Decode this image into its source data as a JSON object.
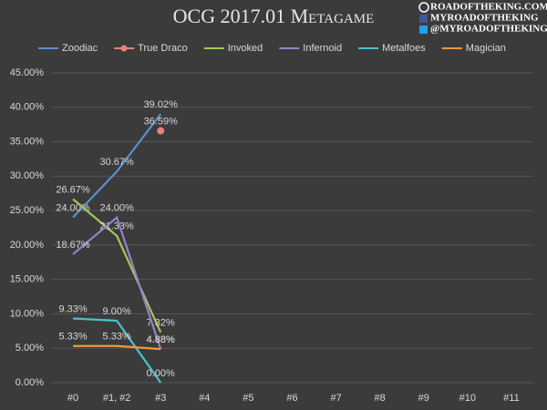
{
  "chart_data": {
    "type": "line",
    "title": "OCG 2017.01 Metagame",
    "branding": [
      "ROADOFTHEKING.COM",
      "MYROADOFTHEKING",
      "@MYROADOFTHEKING"
    ],
    "categories": [
      "#0",
      "#1, #2",
      "#3",
      "#4",
      "#5",
      "#6",
      "#7",
      "#8",
      "#9",
      "#10",
      "#11"
    ],
    "series": [
      {
        "name": "Zoodiac",
        "color": "#5b8fd0",
        "values": [
          24,
          30.67,
          39.02,
          null,
          null,
          null,
          null,
          null,
          null,
          null,
          null
        ],
        "value_labels": [
          "24.00%",
          "30.67%",
          "39.02%",
          null,
          null,
          null,
          null,
          null,
          null,
          null,
          null
        ]
      },
      {
        "name": "True Draco",
        "color": "#e8837a",
        "marker": true,
        "values": [
          null,
          null,
          36.59,
          null,
          null,
          null,
          null,
          null,
          null,
          null,
          null
        ],
        "value_labels": [
          null,
          null,
          "36.59%",
          null,
          null,
          null,
          null,
          null,
          null,
          null,
          null
        ]
      },
      {
        "name": "Invoked",
        "color": "#a4c85a",
        "values": [
          26.67,
          21.33,
          7.32,
          null,
          null,
          null,
          null,
          null,
          null,
          null,
          null
        ],
        "value_labels": [
          "26.67%",
          "21.33%",
          "7.32%",
          null,
          null,
          null,
          null,
          null,
          null,
          null,
          null
        ]
      },
      {
        "name": "Infernoid",
        "color": "#9b7ec8",
        "values": [
          18.67,
          24,
          4.88,
          null,
          null,
          null,
          null,
          null,
          null,
          null,
          null
        ],
        "value_labels": [
          "18.67%",
          "24.00%",
          "4.88%",
          null,
          null,
          null,
          null,
          null,
          null,
          null,
          null
        ]
      },
      {
        "name": "Metalfoes",
        "color": "#4bc0d4",
        "values": [
          9.33,
          9,
          0,
          null,
          null,
          null,
          null,
          null,
          null,
          null,
          null
        ],
        "value_labels": [
          "9.33%",
          "9.00%",
          "0.00%",
          null,
          null,
          null,
          null,
          null,
          null,
          null,
          null
        ]
      },
      {
        "name": "Magician",
        "color": "#f39a3c",
        "values": [
          5.33,
          5.33,
          4.88,
          null,
          null,
          null,
          null,
          null,
          null,
          null,
          null
        ],
        "value_labels": [
          "5.33%",
          "5.33%",
          "4.88%",
          null,
          null,
          null,
          null,
          null,
          null,
          null,
          null
        ]
      }
    ],
    "ylim": [
      0,
      45
    ],
    "yticks": [
      {
        "value": 0,
        "label": "0.00%"
      },
      {
        "value": 5,
        "label": "5.00%"
      },
      {
        "value": 10,
        "label": "10.00%"
      },
      {
        "value": 15,
        "label": "15.00%"
      },
      {
        "value": 20,
        "label": "20.00%"
      },
      {
        "value": 25,
        "label": "25.00%"
      },
      {
        "value": 30,
        "label": "30.00%"
      },
      {
        "value": 35,
        "label": "35.00%"
      },
      {
        "value": 40,
        "label": "40.00%"
      },
      {
        "value": 45,
        "label": "45.00%"
      }
    ],
    "grid": true,
    "legend": "top"
  }
}
